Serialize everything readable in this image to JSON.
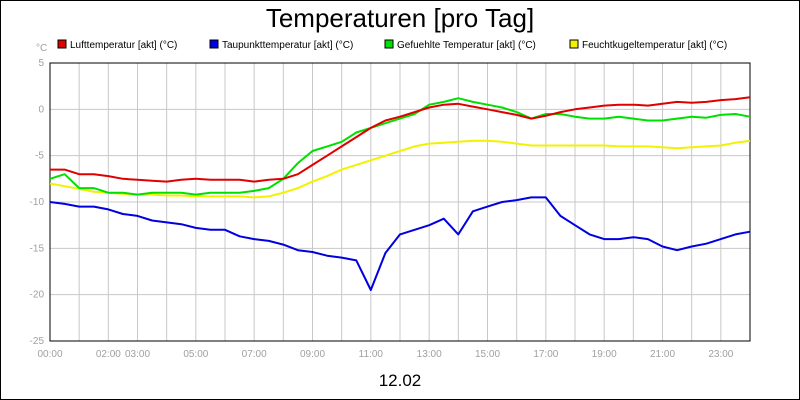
{
  "chart_data": {
    "type": "line",
    "title": "Temperaturen [pro Tag]",
    "y_unit": "°C",
    "date_label": "12.02",
    "ylim": [
      -25,
      5
    ],
    "yticks": [
      "5",
      "0",
      "-5",
      "-10",
      "-15",
      "-20",
      "-25"
    ],
    "xlim": [
      0,
      24
    ],
    "xticks": [
      "00:00",
      "02:00",
      "03:00",
      "05:00",
      "07:00",
      "09:00",
      "11:00",
      "13:00",
      "15:00",
      "17:00",
      "19:00",
      "21:00",
      "23:00"
    ],
    "xtick_hours": [
      0,
      2,
      3,
      5,
      7,
      9,
      11,
      13,
      15,
      17,
      19,
      21,
      23
    ],
    "grid": true,
    "legend_position": "top",
    "x_hours": [
      0,
      0.5,
      1,
      1.5,
      2,
      2.5,
      3,
      3.5,
      4,
      4.5,
      5,
      5.5,
      6,
      6.5,
      7,
      7.5,
      8,
      8.5,
      9,
      9.5,
      10,
      10.5,
      11,
      11.5,
      12,
      12.5,
      13,
      13.5,
      14,
      14.5,
      15,
      15.5,
      16,
      16.5,
      17,
      17.5,
      18,
      18.5,
      19,
      19.5,
      20,
      20.5,
      21,
      21.5,
      22,
      22.5,
      23,
      23.5,
      24
    ],
    "series": [
      {
        "name": "Lufttemperatur [akt] (°C)",
        "color": "#e00000",
        "values": [
          -6.5,
          -6.5,
          -7.0,
          -7.0,
          -7.2,
          -7.5,
          -7.6,
          -7.7,
          -7.8,
          -7.6,
          -7.5,
          -7.6,
          -7.6,
          -7.6,
          -7.8,
          -7.6,
          -7.5,
          -7.0,
          -6.0,
          -5.0,
          -4.0,
          -3.0,
          -2.0,
          -1.2,
          -0.8,
          -0.3,
          0.2,
          0.5,
          0.6,
          0.3,
          0.0,
          -0.3,
          -0.6,
          -1.0,
          -0.7,
          -0.3,
          0.0,
          0.2,
          0.4,
          0.5,
          0.5,
          0.4,
          0.6,
          0.8,
          0.7,
          0.8,
          1.0,
          1.1,
          1.3
        ]
      },
      {
        "name": "Taupunkttemperatur [akt] (°C)",
        "color": "#0000e0",
        "values": [
          -10.0,
          -10.2,
          -10.5,
          -10.5,
          -10.8,
          -11.3,
          -11.5,
          -12.0,
          -12.2,
          -12.4,
          -12.8,
          -13.0,
          -13.0,
          -13.7,
          -14.0,
          -14.2,
          -14.6,
          -15.2,
          -15.4,
          -15.8,
          -16.0,
          -16.3,
          -19.5,
          -15.5,
          -13.5,
          -13.0,
          -12.5,
          -11.8,
          -13.5,
          -11.0,
          -10.5,
          -10.0,
          -9.8,
          -9.5,
          -9.5,
          -11.5,
          -12.5,
          -13.5,
          -14.0,
          -14.0,
          -13.8,
          -14.0,
          -14.8,
          -15.2,
          -14.8,
          -14.5,
          -14.0,
          -13.5,
          -13.2
        ]
      },
      {
        "name": "Gefuehlte Temperatur [akt] (°C)",
        "color": "#00e000",
        "values": [
          -7.5,
          -7.0,
          -8.5,
          -8.5,
          -9.0,
          -9.0,
          -9.2,
          -9.0,
          -9.0,
          -9.0,
          -9.2,
          -9.0,
          -9.0,
          -9.0,
          -8.8,
          -8.5,
          -7.5,
          -5.8,
          -4.5,
          -4.0,
          -3.5,
          -2.5,
          -2.0,
          -1.5,
          -1.0,
          -0.5,
          0.5,
          0.8,
          1.2,
          0.8,
          0.5,
          0.2,
          -0.3,
          -1.0,
          -0.5,
          -0.5,
          -0.8,
          -1.0,
          -1.0,
          -0.8,
          -1.0,
          -1.2,
          -1.2,
          -1.0,
          -0.8,
          -0.9,
          -0.6,
          -0.5,
          -0.8
        ]
      },
      {
        "name": "Feuchtkugeltemperatur [akt] (°C)",
        "color": "#f2f200",
        "values": [
          -8.0,
          -8.3,
          -8.6,
          -8.9,
          -9.0,
          -9.1,
          -9.2,
          -9.2,
          -9.3,
          -9.3,
          -9.4,
          -9.4,
          -9.4,
          -9.4,
          -9.5,
          -9.4,
          -9.0,
          -8.5,
          -7.8,
          -7.2,
          -6.5,
          -6.0,
          -5.5,
          -5.0,
          -4.5,
          -4.0,
          -3.7,
          -3.6,
          -3.5,
          -3.4,
          -3.4,
          -3.5,
          -3.7,
          -3.9,
          -3.9,
          -3.9,
          -3.9,
          -3.9,
          -3.9,
          -4.0,
          -4.0,
          -4.0,
          -4.1,
          -4.2,
          -4.1,
          -4.0,
          -3.9,
          -3.6,
          -3.4
        ]
      }
    ]
  }
}
